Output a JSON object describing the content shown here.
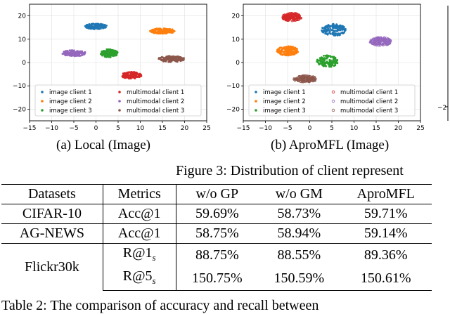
{
  "chart_data": [
    {
      "type": "scatter",
      "title": "",
      "xlim": [
        -15,
        25
      ],
      "ylim": [
        -25,
        25
      ],
      "xticks": [
        -15,
        -10,
        -5,
        0,
        5,
        10,
        15,
        20,
        25
      ],
      "yticks": [
        -20,
        -10,
        0,
        10,
        20
      ],
      "legend_position": "lower-center",
      "series": [
        {
          "name": "image client 1",
          "color": "#1f77b4",
          "marker": "dot",
          "cx": 0,
          "cy": 15.5,
          "rx": 2.5,
          "ry": 1.2
        },
        {
          "name": "image client 2",
          "color": "#ff7f0e",
          "marker": "dot",
          "cx": 15,
          "cy": 13.5,
          "rx": 2.8,
          "ry": 1.2
        },
        {
          "name": "image client 3",
          "color": "#2ca02c",
          "marker": "dot",
          "cx": 3,
          "cy": 4,
          "rx": 2,
          "ry": 1.8
        },
        {
          "name": "multimodal client 1",
          "color": "#d62728",
          "marker": "dot",
          "cx": 8,
          "cy": -5.5,
          "rx": 2.3,
          "ry": 1.5
        },
        {
          "name": "multimodal client 2",
          "color": "#9467bd",
          "marker": "dot",
          "cx": -5,
          "cy": 4,
          "rx": 2.8,
          "ry": 1.3
        },
        {
          "name": "multimodal client 3",
          "color": "#8c564b",
          "marker": "dot",
          "cx": 17,
          "cy": 1.5,
          "rx": 3,
          "ry": 1.3
        }
      ]
    },
    {
      "type": "scatter",
      "title": "",
      "xlim": [
        -15,
        25
      ],
      "ylim": [
        -25,
        25
      ],
      "xticks": [
        -15,
        -10,
        -5,
        0,
        5,
        10,
        15,
        20,
        25
      ],
      "yticks": [
        -20,
        -10,
        0,
        10,
        20
      ],
      "legend_position": "lower-center",
      "series": [
        {
          "name": "image client 1",
          "color": "#1f77b4",
          "marker": "dot",
          "cx": 5.5,
          "cy": 14,
          "rx": 2.8,
          "ry": 2.6
        },
        {
          "name": "image client 2",
          "color": "#ff7f0e",
          "marker": "dot",
          "cx": -5,
          "cy": 5,
          "rx": 2.4,
          "ry": 2
        },
        {
          "name": "image client 3",
          "color": "#2ca02c",
          "marker": "dot",
          "cx": 4,
          "cy": 0.5,
          "rx": 2.4,
          "ry": 2.6
        },
        {
          "name": "multimodal client 1",
          "color": "#d62728",
          "marker": "ring",
          "cx": -4,
          "cy": 19.5,
          "rx": 2.2,
          "ry": 1.7
        },
        {
          "name": "multimodal client 2",
          "color": "#9467bd",
          "marker": "ring",
          "cx": 16,
          "cy": 9,
          "rx": 2.4,
          "ry": 1.8
        },
        {
          "name": "multimodal client 3",
          "color": "#8c564b",
          "marker": "ring",
          "cx": -1,
          "cy": -7,
          "rx": 2.6,
          "ry": 1.4
        }
      ]
    }
  ],
  "captions": {
    "a": "(a) Local (Image)",
    "b": "(b) AproMFL (Image)"
  },
  "figure_caption": "Figure 3: Distribution of client represent",
  "right_edge_tick": "−2",
  "table": {
    "headers": [
      "Datasets",
      "Metrics",
      "w/o GP",
      "w/o GM",
      "AproMFL"
    ],
    "rows": [
      {
        "dataset": "CIFAR-10",
        "metric": "Acc@1",
        "gp": "59.69%",
        "gm": "58.73%",
        "apro": "59.71%"
      },
      {
        "dataset": "AG-NEWS",
        "metric": "Acc@1",
        "gp": "58.75%",
        "gm": "58.94%",
        "apro": "59.14%"
      },
      {
        "dataset": "Flickr30k",
        "metric": "R@1",
        "metric_sub": "s",
        "gp": "88.75%",
        "gm": "88.55%",
        "apro": "89.36%"
      },
      {
        "dataset": "",
        "metric": "R@5",
        "metric_sub": "s",
        "gp": "150.75%",
        "gm": "150.59%",
        "apro": "150.61%"
      }
    ]
  },
  "table_caption": "Table 2: The comparison of accuracy and recall between"
}
